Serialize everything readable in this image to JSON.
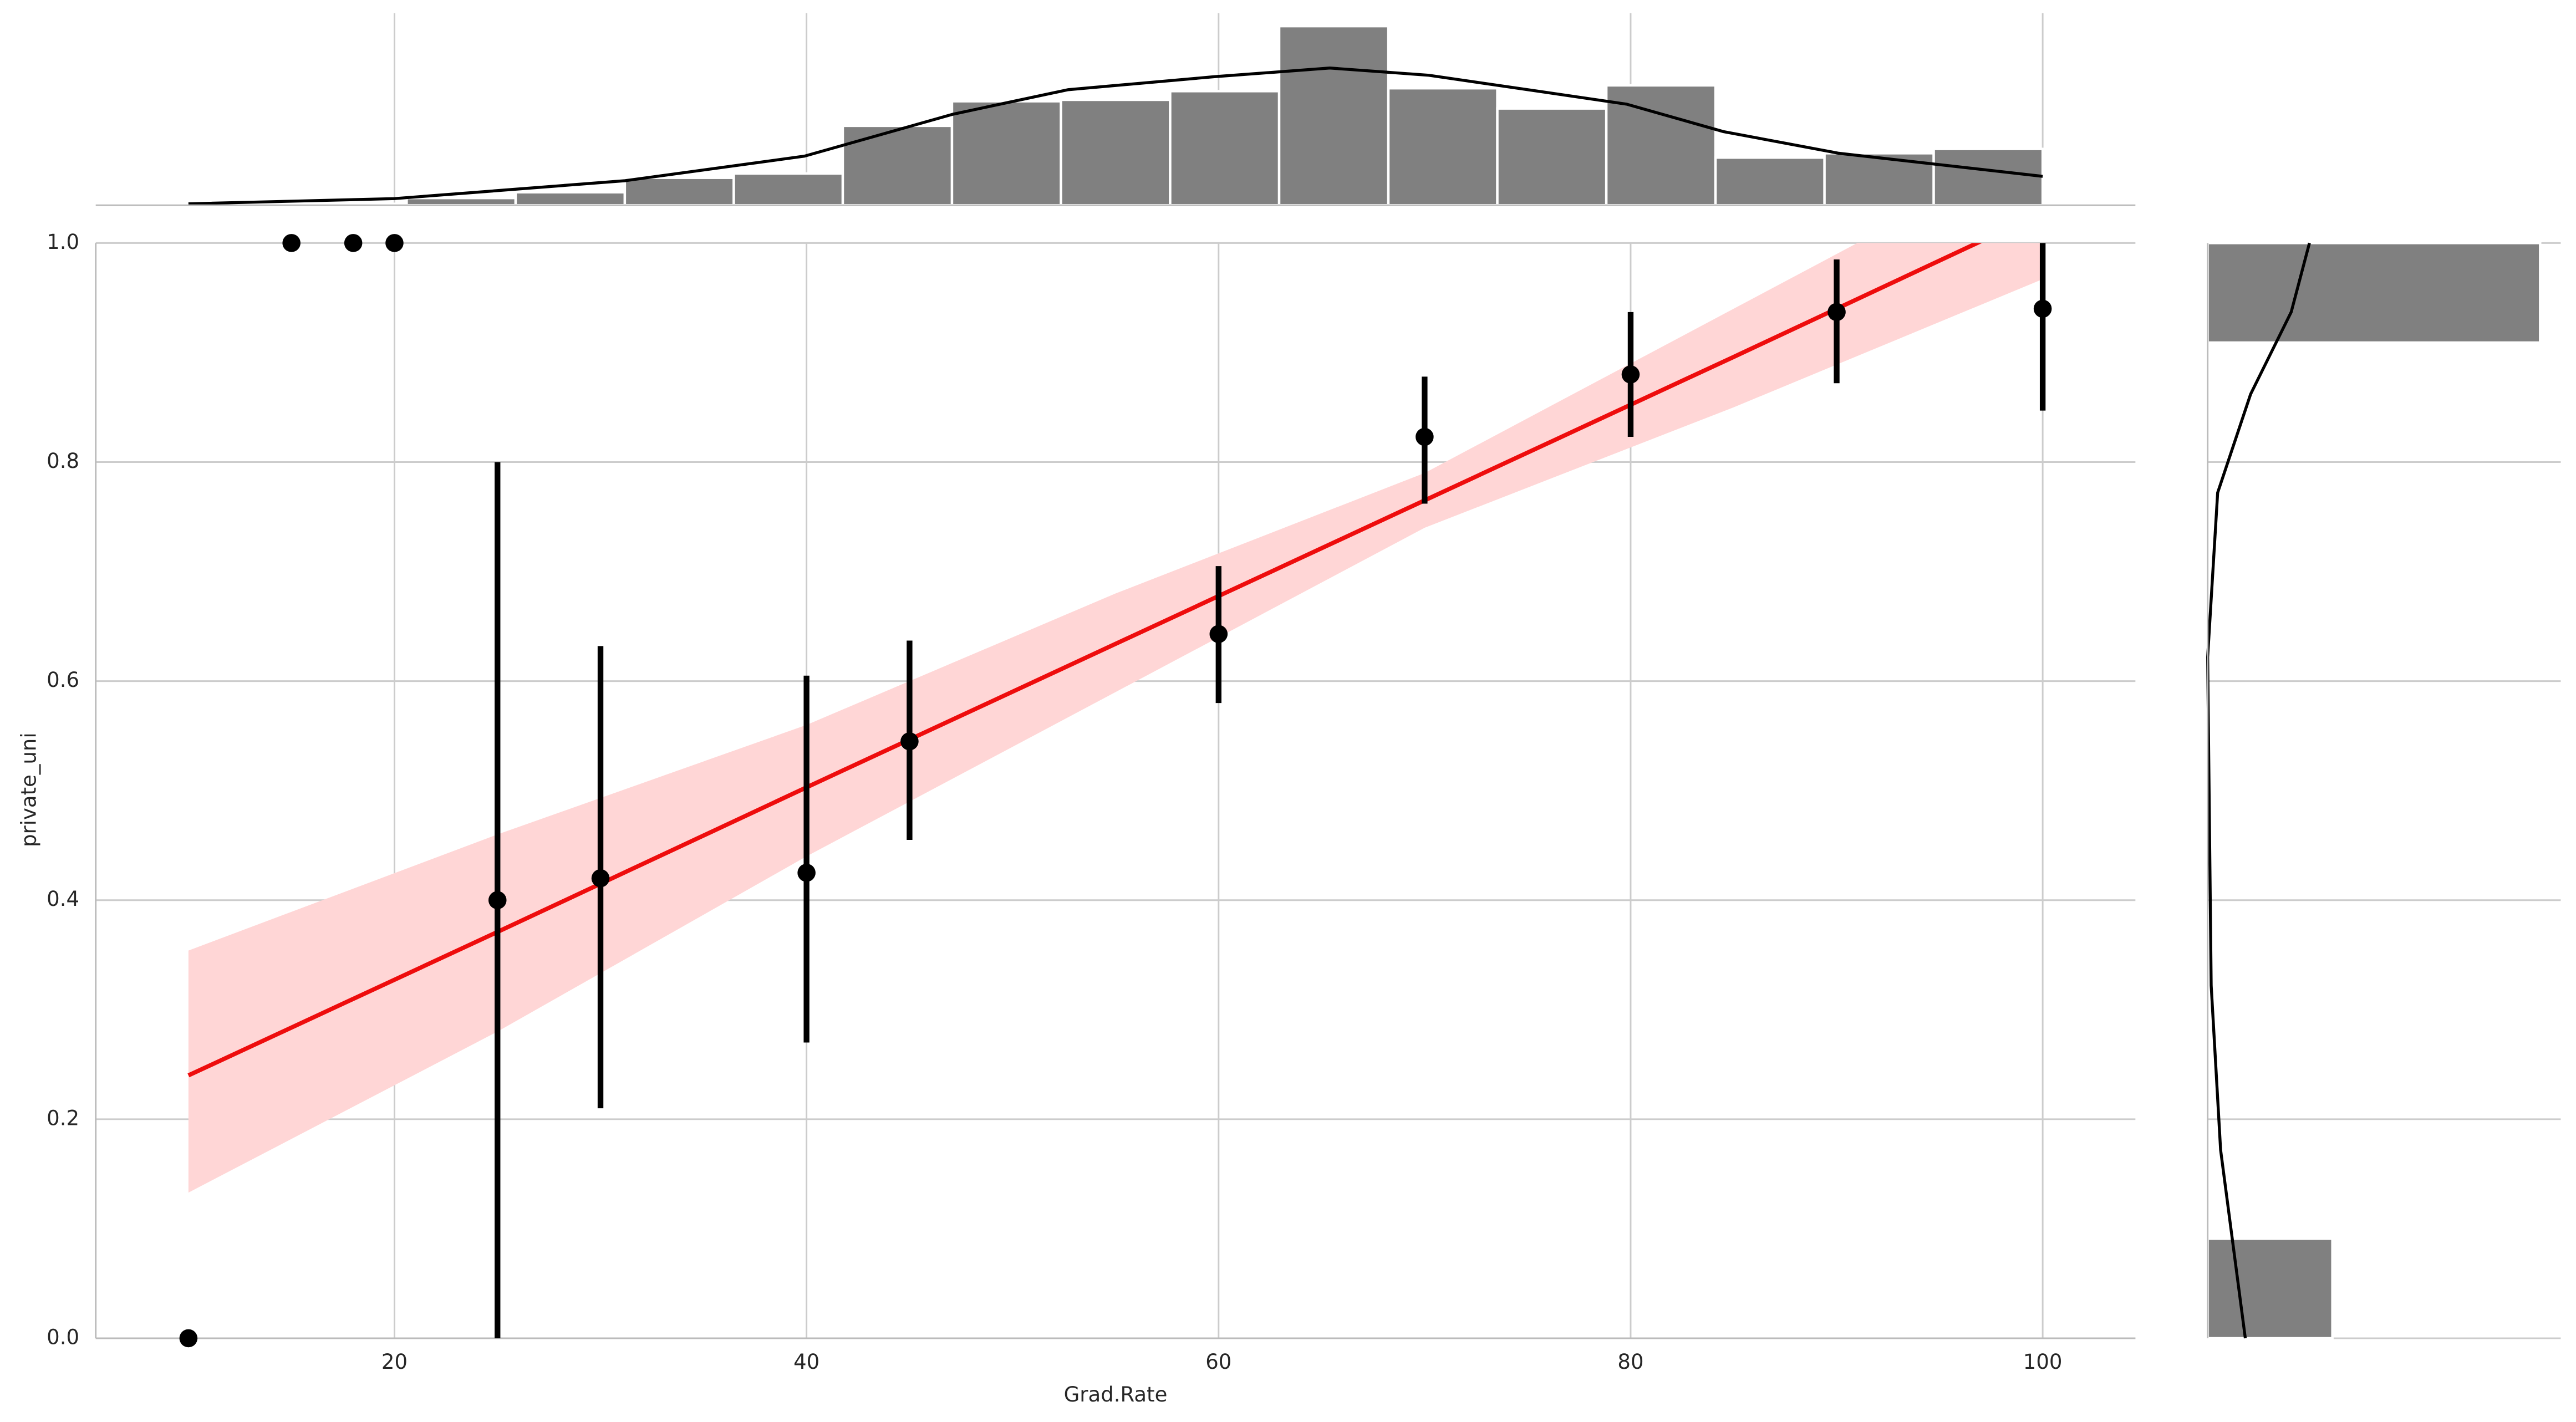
{
  "chart_data": [
    {
      "type": "scatter",
      "xlabel": "Grad.Rate",
      "ylabel": "private_uni",
      "x": [
        10,
        15,
        18,
        20,
        25,
        30,
        40,
        45,
        60,
        70,
        80,
        90,
        100
      ],
      "values": [
        0,
        1,
        1,
        1,
        0.4,
        0.42,
        0.425,
        0.545,
        0.643,
        0.823,
        0.88,
        0.937,
        0.94
      ],
      "ci_low": [
        null,
        null,
        null,
        null,
        0,
        0.21,
        0.27,
        0.455,
        0.58,
        0.762,
        0.823,
        0.872,
        0.847
      ],
      "ci_high": [
        null,
        null,
        null,
        null,
        0.8,
        0.632,
        0.605,
        0.637,
        0.705,
        0.878,
        0.937,
        0.985,
        1.0
      ],
      "color": "#000000",
      "fit": {
        "x": [
          10,
          25,
          40,
          55,
          70,
          85,
          100
        ],
        "y": [
          0.24,
          0.371,
          0.503,
          0.634,
          0.765,
          0.896,
          1.028
        ],
        "upper": [
          0.354,
          0.46,
          0.56,
          0.68,
          0.79,
          0.94,
          1.09
        ],
        "lower": [
          0.133,
          0.28,
          0.44,
          0.59,
          0.74,
          0.85,
          0.967
        ],
        "color": "#ee0d0d",
        "band_color": "#ffd6d6"
      },
      "xlim": [
        5.5,
        104.5
      ],
      "ylim": [
        0,
        1
      ],
      "xticks": [
        20,
        40,
        60,
        80,
        100
      ],
      "yticks": [
        {
          "value": 0,
          "label": "0.0"
        },
        {
          "value": 0.2,
          "label": "0.2"
        },
        {
          "value": 0.4,
          "label": "0.4"
        },
        {
          "value": 0.6,
          "label": "0.6"
        },
        {
          "value": 0.8,
          "label": "0.8"
        },
        {
          "value": 1,
          "label": "1.0"
        }
      ],
      "grid": true
    },
    {
      "type": "histogram",
      "orientation": "vertical",
      "bins": [
        10,
        15.29,
        20.59,
        25.88,
        31.18,
        36.47,
        41.76,
        47.06,
        52.35,
        57.65,
        62.94,
        68.24,
        73.53,
        78.82,
        84.12,
        89.41,
        94.71,
        100
      ],
      "counts": [
        1,
        1,
        5,
        9,
        19,
        22,
        55,
        72,
        73,
        79,
        124,
        81,
        67,
        83,
        33,
        36,
        39
      ],
      "color": "#808080",
      "kde": {
        "grid": [
          10,
          20,
          31.2,
          39.9,
          47.1,
          52.7,
          59.8,
          65.4,
          70.2,
          79.8,
          84.5,
          90.1,
          100
        ],
        "density": [
          1,
          4.6,
          17,
          34,
          63,
          80,
          89,
          95,
          90,
          70,
          51,
          36,
          20
        ],
        "color": "#000000"
      },
      "xlim": [
        5.5,
        104.5
      ],
      "ylim": [
        0,
        133
      ]
    },
    {
      "type": "histogram",
      "orientation": "horizontal",
      "bins": [
        0,
        0.0909,
        0.1818,
        0.2727,
        0.3636,
        0.4545,
        0.5455,
        0.6364,
        0.7273,
        0.8182,
        0.9091,
        1
      ],
      "counts": [
        212,
        0,
        0,
        0,
        0,
        0,
        0,
        0,
        0,
        0,
        565
      ],
      "color": "#808080",
      "kde": {
        "grid": [
          0,
          0.172,
          0.322,
          0.622,
          0.772,
          0.862,
          0.937,
          1.0
        ],
        "density": [
          64,
          22,
          6,
          0,
          17,
          73,
          142,
          173
        ],
        "color": "#000000"
      },
      "xlim": [
        0,
        600
      ],
      "ylim": [
        0,
        1
      ]
    }
  ]
}
